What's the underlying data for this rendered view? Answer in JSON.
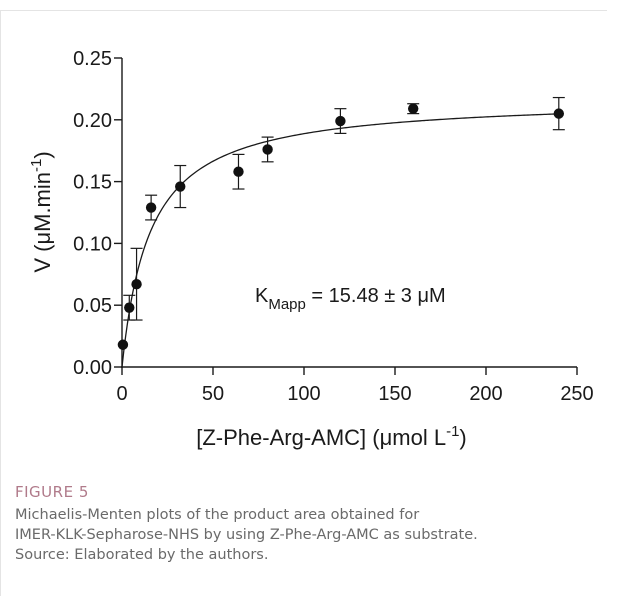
{
  "figure": {
    "label": "FIGURE 5",
    "caption_lines": [
      "Michaelis-Menten plots of the product area obtained for",
      "IMER-KLK-Sepharose-NHS by using Z-Phe-Arg-AMC as substrate.",
      "Source: Elaborated by the authors."
    ]
  },
  "chart_data": {
    "type": "scatter",
    "title": "",
    "xlabel": {
      "main": "[Z-Phe-Arg-AMC] (μmol L",
      "sup": "-1",
      "tail": ")"
    },
    "ylabel": {
      "main": "V (μM.min",
      "sup": "-1",
      "tail": ")"
    },
    "xlim": [
      0,
      250
    ],
    "ylim": [
      0,
      0.25
    ],
    "x_ticks": [
      0,
      50,
      100,
      150,
      200,
      250
    ],
    "y_ticks": [
      0.0,
      0.05,
      0.1,
      0.15,
      0.2,
      0.25
    ],
    "y_tick_labels": [
      "0.00",
      "0.05",
      "0.10",
      "0.15",
      "0.20",
      "0.25"
    ],
    "x_tick_labels": [
      "0",
      "50",
      "100",
      "150",
      "200",
      "250"
    ],
    "grid": false,
    "series": [
      {
        "points": [
          {
            "x": 0.5,
            "y": 0.018,
            "err": 0
          },
          {
            "x": 4,
            "y": 0.048,
            "err": 0.01
          },
          {
            "x": 8,
            "y": 0.067,
            "err": 0.029
          },
          {
            "x": 16,
            "y": 0.129,
            "err": 0.01
          },
          {
            "x": 32,
            "y": 0.146,
            "err": 0.017
          },
          {
            "x": 64,
            "y": 0.158,
            "err": 0.014
          },
          {
            "x": 80,
            "y": 0.176,
            "err": 0.01
          },
          {
            "x": 120,
            "y": 0.199,
            "err": 0.01
          },
          {
            "x": 160,
            "y": 0.209,
            "err": 0.004
          },
          {
            "x": 240,
            "y": 0.205,
            "err": 0.013
          }
        ]
      }
    ],
    "fit": {
      "model": "michaelis-menten",
      "Vmax": 0.218,
      "Km": 15.48
    },
    "annotation": {
      "prefix": "K",
      "sub": "Mapp",
      "text": " = 15.48 ± 3 μM"
    }
  }
}
